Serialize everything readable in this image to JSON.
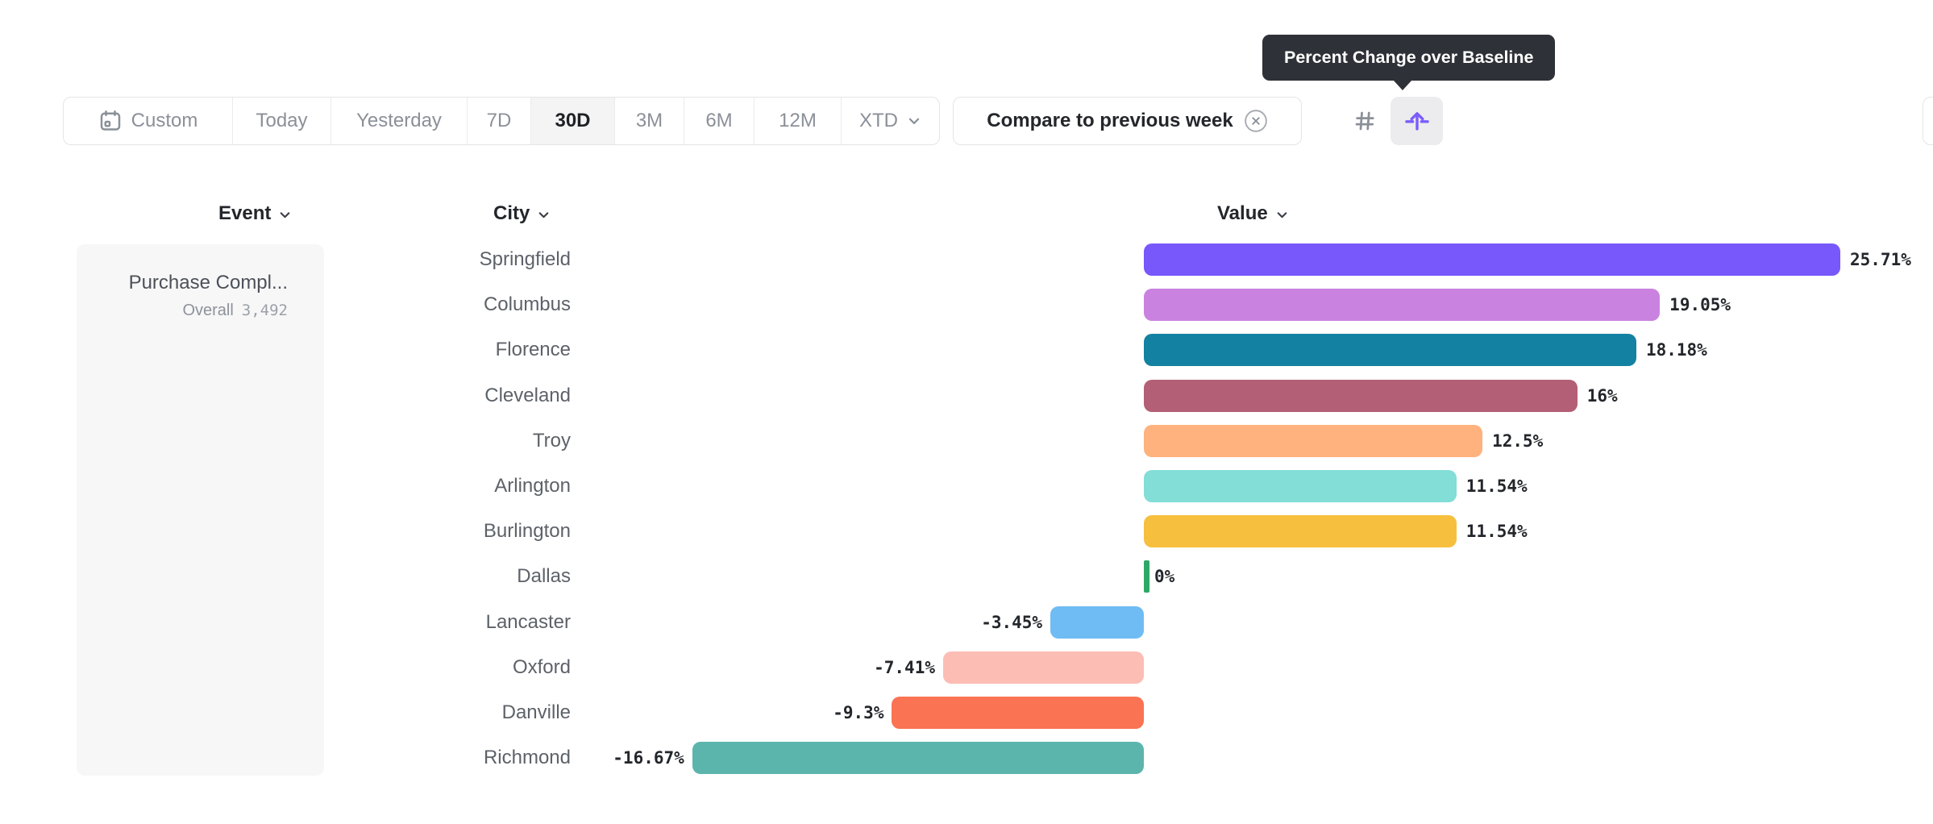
{
  "toolbar": {
    "date_range_control": {
      "items": [
        {
          "label": "Custom",
          "icon": "calendar-icon",
          "selected": false
        },
        {
          "label": "Today",
          "selected": false
        },
        {
          "label": "Yesterday",
          "selected": false
        },
        {
          "label": "7D",
          "selected": false
        },
        {
          "label": "30D",
          "selected": true
        },
        {
          "label": "3M",
          "selected": false
        },
        {
          "label": "6M",
          "selected": false
        },
        {
          "label": "12M",
          "selected": false
        },
        {
          "label": "XTD",
          "icon": "chevron-down-icon",
          "selected": false
        }
      ]
    },
    "compare_chip": {
      "label": "Compare to previous week",
      "close_icon": "circle-x-icon"
    },
    "view_toggle": {
      "options": [
        {
          "icon": "grid-icon",
          "selected": false
        },
        {
          "icon": "baseline-arrow-icon",
          "selected": true
        }
      ],
      "accent_color": "#7b5cfc",
      "selected_bg": "#ececee"
    }
  },
  "tooltip": {
    "text": "Percent Change over Baseline",
    "bg_color": "#2e3137"
  },
  "table": {
    "headers": [
      {
        "label": "Event",
        "icon": "chevron-down-icon"
      },
      {
        "label": "City",
        "icon": "chevron-down-icon"
      },
      {
        "label": "Value",
        "icon": "chevron-down-icon"
      }
    ]
  },
  "event_panel": {
    "title": "Purchase Compl...",
    "overall_label": "Overall",
    "overall_value": "3,492"
  },
  "chart_data": {
    "type": "bar",
    "orientation": "horizontal",
    "title": "Percent Change over Baseline",
    "unit": "%",
    "xlim": [
      -16.67,
      25.71
    ],
    "categories": [
      "Springfield",
      "Columbus",
      "Florence",
      "Cleveland",
      "Troy",
      "Arlington",
      "Burlington",
      "Dallas",
      "Lancaster",
      "Oxford",
      "Danville",
      "Richmond"
    ],
    "values": [
      25.71,
      19.05,
      18.18,
      16,
      12.5,
      11.54,
      11.54,
      0,
      -3.45,
      -7.41,
      -9.3,
      -16.67
    ],
    "value_labels": [
      "25.71%",
      "19.05%",
      "18.18%",
      "16%",
      "12.5%",
      "11.54%",
      "11.54%",
      "0%",
      "-3.45%",
      "-7.41%",
      "-9.3%",
      "-16.67%"
    ],
    "colors": [
      "#7857fb",
      "#ca82e0",
      "#1381a1",
      "#b35f75",
      "#ffb27d",
      "#82ded6",
      "#f6bf3e",
      "#2ea866",
      "#6fbcf4",
      "#fcbdb5",
      "#fa7352",
      "#5bb5ac"
    ]
  }
}
